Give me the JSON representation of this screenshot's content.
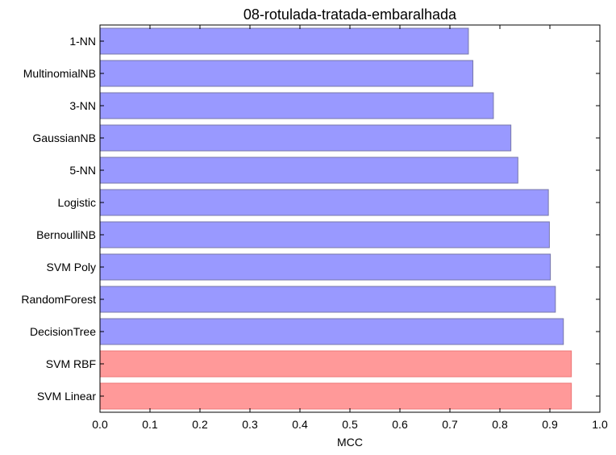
{
  "chart_data": {
    "type": "bar",
    "orientation": "horizontal",
    "title": "08-rotulada-tratada-embaralhada",
    "xlabel": "MCC",
    "ylabel": "",
    "xlim": [
      0.0,
      1.0
    ],
    "xticks": [
      "0.0",
      "0.1",
      "0.2",
      "0.3",
      "0.4",
      "0.5",
      "0.6",
      "0.7",
      "0.8",
      "0.9",
      "1.0"
    ],
    "categories": [
      "1-NN",
      "MultinomialNB",
      "3-NN",
      "GaussianNB",
      "5-NN",
      "Logistic",
      "BernoulliNB",
      "SVM Poly",
      "RandomForest",
      "DecisionTree",
      "SVM RBF",
      "SVM Linear"
    ],
    "values": [
      0.737,
      0.746,
      0.787,
      0.822,
      0.836,
      0.897,
      0.899,
      0.901,
      0.911,
      0.927,
      0.943,
      0.943
    ],
    "highlighted": [
      false,
      false,
      false,
      false,
      false,
      false,
      false,
      false,
      false,
      false,
      true,
      true
    ],
    "grid": false,
    "colors": {
      "bar": "#9999ff",
      "bar_edge": "#7777aa",
      "highlight": "#ff9999",
      "highlight_edge": "#ee7777",
      "axis": "#000000"
    }
  }
}
